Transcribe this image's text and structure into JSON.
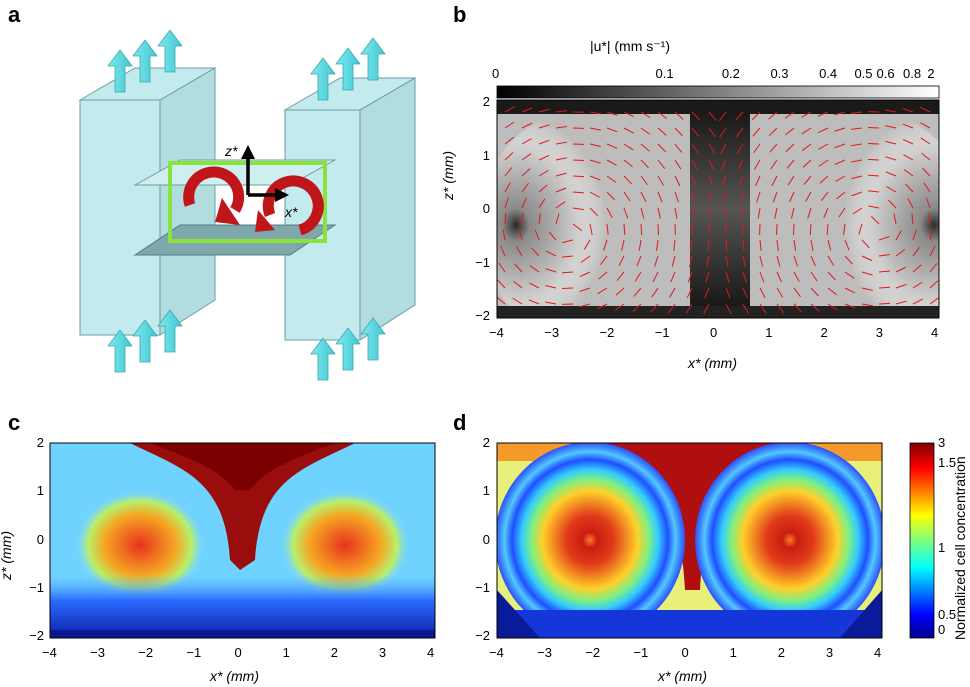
{
  "panels": {
    "a": {
      "letter": "a",
      "axis_z": "z*",
      "axis_x": "x*"
    },
    "b": {
      "letter": "b",
      "colorbar_title": "|u*| (mm s⁻¹)",
      "colorbar_ticks": [
        "0",
        "0.1",
        "0.2",
        "0.3",
        "0.4",
        "0.5",
        "0.6",
        "0.8",
        "2"
      ],
      "xlabel": "x* (mm)",
      "ylabel": "z* (mm)",
      "xticks": [
        "−4",
        "−3",
        "−2",
        "−1",
        "0",
        "1",
        "2",
        "3",
        "4"
      ],
      "yticks": [
        "2",
        "1",
        "0",
        "−1",
        "−2"
      ]
    },
    "c": {
      "letter": "c",
      "xlabel": "x* (mm)",
      "ylabel": "z* (mm)",
      "xticks": [
        "−4",
        "−3",
        "−2",
        "−1",
        "0",
        "1",
        "2",
        "3",
        "4"
      ],
      "yticks": [
        "2",
        "1",
        "0",
        "−1",
        "−2"
      ]
    },
    "d": {
      "letter": "d",
      "xlabel": "x* (mm)",
      "xticks": [
        "−4",
        "−3",
        "−2",
        "−1",
        "0",
        "1",
        "2",
        "3",
        "4"
      ],
      "yticks": [
        "2",
        "1",
        "0",
        "−1",
        "−2"
      ],
      "colorbar_title": "Normalized cell concentration",
      "colorbar_ticks": [
        "3",
        "1.5",
        "1",
        "0.5",
        "0"
      ]
    }
  },
  "chart_data": [
    {
      "type": "heatmap",
      "panel": "b",
      "xlabel": "x* (mm)",
      "ylabel": "z* (mm)",
      "xlim": [
        -4,
        4
      ],
      "ylim": [
        -2,
        2
      ],
      "colorbar": {
        "label": "|u*| (mm s⁻¹)",
        "ticks": [
          0,
          0.1,
          0.2,
          0.3,
          0.4,
          0.5,
          0.6,
          0.8,
          2
        ],
        "colormap": "gray"
      }
    },
    {
      "type": "heatmap",
      "panel": "c",
      "xlabel": "x* (mm)",
      "ylabel": "z* (mm)",
      "xlim": [
        -4,
        4
      ],
      "ylim": [
        -2,
        2
      ]
    },
    {
      "type": "heatmap",
      "panel": "d",
      "xlabel": "x* (mm)",
      "xlim": [
        -4,
        4
      ],
      "ylim": [
        -2,
        2
      ],
      "colorbar": {
        "label": "Normalized cell concentration",
        "ticks": [
          0,
          0.5,
          1,
          1.5,
          3
        ],
        "colormap": "jet"
      }
    }
  ]
}
